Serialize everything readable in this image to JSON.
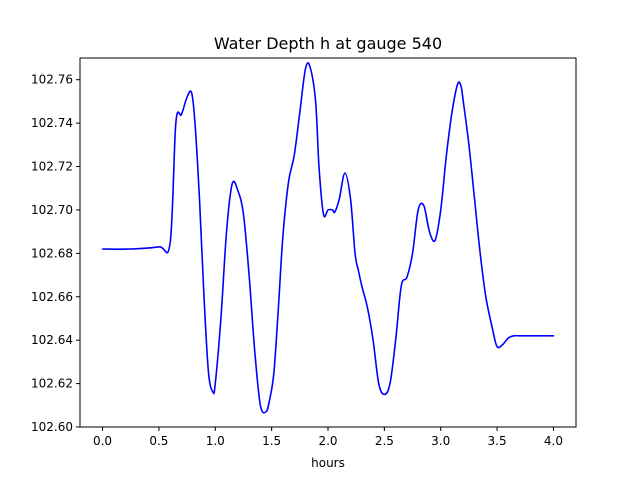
{
  "chart_data": {
    "type": "line",
    "title": "Water Depth h at gauge 540",
    "xlabel": "hours",
    "ylabel": "",
    "xlim": [
      -0.2,
      4.2
    ],
    "ylim": [
      102.6,
      102.77
    ],
    "xticks": [
      0.0,
      0.5,
      1.0,
      1.5,
      2.0,
      2.5,
      3.0,
      3.5,
      4.0
    ],
    "xtick_labels": [
      "0.0",
      "0.5",
      "1.0",
      "1.5",
      "2.0",
      "2.5",
      "3.0",
      "3.5",
      "4.0"
    ],
    "yticks": [
      102.6,
      102.62,
      102.64,
      102.66,
      102.68,
      102.7,
      102.72,
      102.74,
      102.76
    ],
    "ytick_labels": [
      "102.60",
      "102.62",
      "102.64",
      "102.66",
      "102.68",
      "102.70",
      "102.72",
      "102.74",
      "102.76"
    ],
    "grid": false,
    "legend": "none",
    "series": [
      {
        "color": "#0000ff",
        "x": [
          0.0,
          0.25,
          0.5,
          0.6,
          0.65,
          0.7,
          0.75,
          0.79,
          0.82,
          0.86,
          0.9,
          0.94,
          0.98,
          1.0,
          1.05,
          1.1,
          1.15,
          1.2,
          1.25,
          1.3,
          1.35,
          1.4,
          1.45,
          1.48,
          1.52,
          1.56,
          1.6,
          1.65,
          1.7,
          1.75,
          1.8,
          1.84,
          1.89,
          1.92,
          1.96,
          2.0,
          2.04,
          2.06,
          2.1,
          2.15,
          2.2,
          2.24,
          2.27,
          2.3,
          2.35,
          2.4,
          2.45,
          2.5,
          2.55,
          2.6,
          2.65,
          2.7,
          2.75,
          2.8,
          2.85,
          2.9,
          2.95,
          3.0,
          3.05,
          3.1,
          3.15,
          3.18,
          3.2,
          3.25,
          3.3,
          3.35,
          3.4,
          3.46,
          3.5,
          3.55,
          3.6,
          3.65,
          3.7,
          3.75,
          3.8,
          3.85,
          3.9,
          3.95,
          4.0
        ],
        "y": [
          102.682,
          102.682,
          102.683,
          102.685,
          102.74,
          102.744,
          102.752,
          102.754,
          102.74,
          102.705,
          102.66,
          102.625,
          102.616,
          102.62,
          102.65,
          102.69,
          102.712,
          102.709,
          102.698,
          102.67,
          102.635,
          102.61,
          102.607,
          102.612,
          102.625,
          102.655,
          102.688,
          102.713,
          102.725,
          102.745,
          102.765,
          102.766,
          102.75,
          102.72,
          102.698,
          102.7,
          102.7,
          102.699,
          102.705,
          102.717,
          102.705,
          102.68,
          102.672,
          102.665,
          102.655,
          102.64,
          102.62,
          102.615,
          102.62,
          102.64,
          102.665,
          102.669,
          102.68,
          102.7,
          102.702,
          102.69,
          102.686,
          102.7,
          102.725,
          102.745,
          102.758,
          102.757,
          102.75,
          102.73,
          102.705,
          102.68,
          102.66,
          102.645,
          102.637,
          102.638,
          102.641,
          102.642,
          102.642,
          102.642,
          102.642,
          102.642,
          102.642,
          102.642,
          102.642
        ]
      }
    ]
  }
}
